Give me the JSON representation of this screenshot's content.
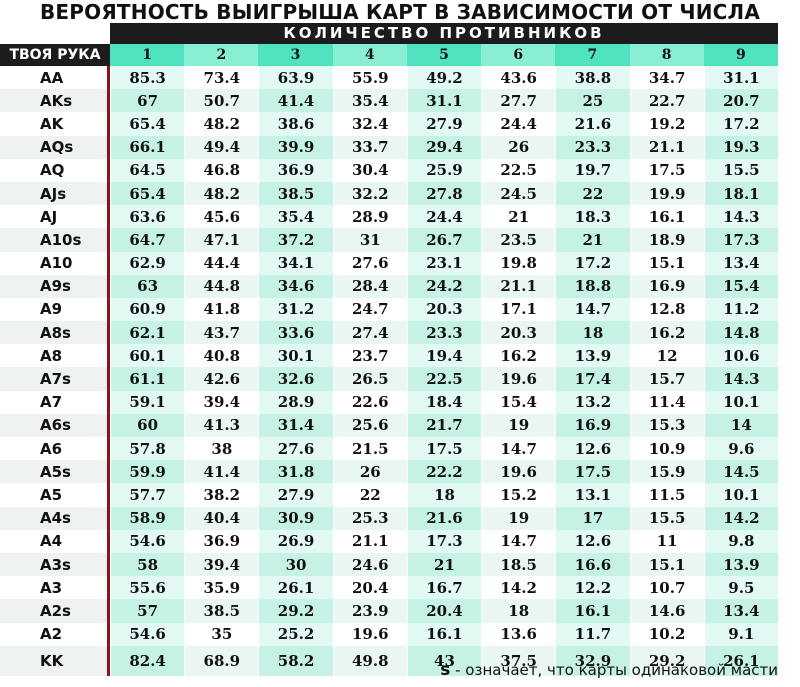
{
  "title": "ВЕРОЯТНОСТЬ ВЫИГРЫША КАРТ В ЗАВИСИМОСТИ ОТ ЧИСЛА ИГРОКОВ",
  "subhead": "КОЛИЧЕСТВО ПРОТИВНИКОВ",
  "hand_header": "ТВОЯ РУКА",
  "columns": [
    "1",
    "2",
    "3",
    "4",
    "5",
    "6",
    "7",
    "8",
    "9"
  ],
  "rows": [
    {
      "hand": "AA",
      "values": [
        "85.3",
        "73.4",
        "63.9",
        "55.9",
        "49.2",
        "43.6",
        "38.8",
        "34.7",
        "31.1"
      ]
    },
    {
      "hand": "AKs",
      "values": [
        "67",
        "50.7",
        "41.4",
        "35.4",
        "31.1",
        "27.7",
        "25",
        "22.7",
        "20.7"
      ]
    },
    {
      "hand": "AK",
      "values": [
        "65.4",
        "48.2",
        "38.6",
        "32.4",
        "27.9",
        "24.4",
        "21.6",
        "19.2",
        "17.2"
      ]
    },
    {
      "hand": "AQs",
      "values": [
        "66.1",
        "49.4",
        "39.9",
        "33.7",
        "29.4",
        "26",
        "23.3",
        "21.1",
        "19.3"
      ]
    },
    {
      "hand": "AQ",
      "values": [
        "64.5",
        "46.8",
        "36.9",
        "30.4",
        "25.9",
        "22.5",
        "19.7",
        "17.5",
        "15.5"
      ]
    },
    {
      "hand": "AJs",
      "values": [
        "65.4",
        "48.2",
        "38.5",
        "32.2",
        "27.8",
        "24.5",
        "22",
        "19.9",
        "18.1"
      ]
    },
    {
      "hand": "AJ",
      "values": [
        "63.6",
        "45.6",
        "35.4",
        "28.9",
        "24.4",
        "21",
        "18.3",
        "16.1",
        "14.3"
      ]
    },
    {
      "hand": "A10s",
      "values": [
        "64.7",
        "47.1",
        "37.2",
        "31",
        "26.7",
        "23.5",
        "21",
        "18.9",
        "17.3"
      ]
    },
    {
      "hand": "A10",
      "values": [
        "62.9",
        "44.4",
        "34.1",
        "27.6",
        "23.1",
        "19.8",
        "17.2",
        "15.1",
        "13.4"
      ]
    },
    {
      "hand": "A9s",
      "values": [
        "63",
        "44.8",
        "34.6",
        "28.4",
        "24.2",
        "21.1",
        "18.8",
        "16.9",
        "15.4"
      ]
    },
    {
      "hand": "A9",
      "values": [
        "60.9",
        "41.8",
        "31.2",
        "24.7",
        "20.3",
        "17.1",
        "14.7",
        "12.8",
        "11.2"
      ]
    },
    {
      "hand": "A8s",
      "values": [
        "62.1",
        "43.7",
        "33.6",
        "27.4",
        "23.3",
        "20.3",
        "18",
        "16.2",
        "14.8"
      ]
    },
    {
      "hand": "A8",
      "values": [
        "60.1",
        "40.8",
        "30.1",
        "23.7",
        "19.4",
        "16.2",
        "13.9",
        "12",
        "10.6"
      ]
    },
    {
      "hand": "A7s",
      "values": [
        "61.1",
        "42.6",
        "32.6",
        "26.5",
        "22.5",
        "19.6",
        "17.4",
        "15.7",
        "14.3"
      ]
    },
    {
      "hand": "A7",
      "values": [
        "59.1",
        "39.4",
        "28.9",
        "22.6",
        "18.4",
        "15.4",
        "13.2",
        "11.4",
        "10.1"
      ]
    },
    {
      "hand": "A6s",
      "values": [
        "60",
        "41.3",
        "31.4",
        "25.6",
        "21.7",
        "19",
        "16.9",
        "15.3",
        "14"
      ]
    },
    {
      "hand": "A6",
      "values": [
        "57.8",
        "38",
        "27.6",
        "21.5",
        "17.5",
        "14.7",
        "12.6",
        "10.9",
        "9.6"
      ]
    },
    {
      "hand": "A5s",
      "values": [
        "59.9",
        "41.4",
        "31.8",
        "26",
        "22.2",
        "19.6",
        "17.5",
        "15.9",
        "14.5"
      ]
    },
    {
      "hand": "A5",
      "values": [
        "57.7",
        "38.2",
        "27.9",
        "22",
        "18",
        "15.2",
        "13.1",
        "11.5",
        "10.1"
      ]
    },
    {
      "hand": "A4s",
      "values": [
        "58.9",
        "40.4",
        "30.9",
        "25.3",
        "21.6",
        "19",
        "17",
        "15.5",
        "14.2"
      ]
    },
    {
      "hand": "A4",
      "values": [
        "54.6",
        "36.9",
        "26.9",
        "21.1",
        "17.3",
        "14.7",
        "12.6",
        "11",
        "9.8"
      ]
    },
    {
      "hand": "A3s",
      "values": [
        "58",
        "39.4",
        "30",
        "24.6",
        "21",
        "18.5",
        "16.6",
        "15.1",
        "13.9"
      ]
    },
    {
      "hand": "A3",
      "values": [
        "55.6",
        "35.9",
        "26.1",
        "20.4",
        "16.7",
        "14.2",
        "12.2",
        "10.7",
        "9.5"
      ]
    },
    {
      "hand": "A2s",
      "values": [
        "57",
        "38.5",
        "29.2",
        "23.9",
        "20.4",
        "18",
        "16.1",
        "14.6",
        "13.4"
      ]
    },
    {
      "hand": "A2",
      "values": [
        "54.6",
        "35",
        "25.2",
        "19.6",
        "16.1",
        "13.6",
        "11.7",
        "10.2",
        "9.1"
      ]
    },
    {
      "hand": "KK",
      "values": [
        "82.4",
        "68.9",
        "58.2",
        "49.8",
        "43",
        "37.5",
        "32.9",
        "29.2",
        "26.1"
      ]
    }
  ],
  "footnote": {
    "symbol": "s",
    "text": " - означает, что карты одинаковой масти"
  }
}
